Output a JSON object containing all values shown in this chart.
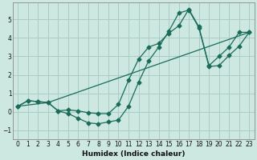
{
  "xlabel": "Humidex (Indice chaleur)",
  "bg_color": "#cce8e0",
  "grid_color": "#aaccc4",
  "line_color": "#1a6b5a",
  "xlim": [
    -0.5,
    23.5
  ],
  "ylim": [
    -1.5,
    5.9
  ],
  "xticks": [
    0,
    1,
    2,
    3,
    4,
    5,
    6,
    7,
    8,
    9,
    10,
    11,
    12,
    13,
    14,
    15,
    16,
    17,
    18,
    19,
    20,
    21,
    22,
    23
  ],
  "yticks": [
    -1,
    0,
    1,
    2,
    3,
    4,
    5
  ],
  "line1_x": [
    0,
    1,
    2,
    3,
    4,
    5,
    6,
    7,
    8,
    9,
    10,
    11,
    12,
    13,
    14,
    15,
    16,
    17,
    18,
    19,
    20,
    21,
    22,
    23
  ],
  "line1_y": [
    0.3,
    0.6,
    0.55,
    0.5,
    0.05,
    0.1,
    0.05,
    -0.05,
    -0.1,
    -0.1,
    0.4,
    1.7,
    2.85,
    3.5,
    3.7,
    4.25,
    4.65,
    5.55,
    4.6,
    2.5,
    3.0,
    3.5,
    4.3,
    4.3
  ],
  "line2_x": [
    0,
    1,
    2,
    3,
    4,
    5,
    6,
    7,
    8,
    9,
    10,
    11,
    12,
    13,
    14,
    15,
    16,
    17,
    18,
    19,
    20,
    21,
    22,
    23
  ],
  "line2_y": [
    0.3,
    0.6,
    0.55,
    0.5,
    0.05,
    -0.1,
    -0.35,
    -0.6,
    -0.65,
    -0.55,
    -0.45,
    0.3,
    1.6,
    2.75,
    3.5,
    4.35,
    5.35,
    5.5,
    4.55,
    2.45,
    2.5,
    3.05,
    3.55,
    4.3
  ],
  "line3_x": [
    0,
    3,
    23
  ],
  "line3_y": [
    0.3,
    0.5,
    4.3
  ]
}
